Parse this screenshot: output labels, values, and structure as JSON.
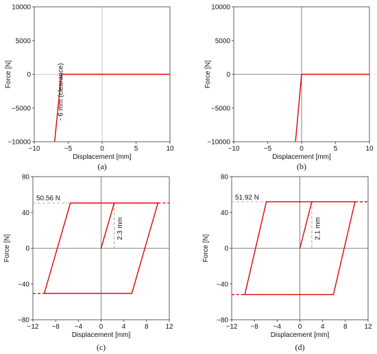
{
  "chart_data": [
    {
      "type": "line",
      "panel_label": "(a)",
      "xlabel": "Displacement [mm]",
      "ylabel": "Force [N]",
      "xlim": [
        -10,
        10
      ],
      "ylim": [
        -10000,
        10000
      ],
      "xticks": [
        -10,
        -5,
        0,
        5,
        10
      ],
      "yticks": [
        -10000,
        -5000,
        0,
        5000,
        10000
      ],
      "xtick_labels": [
        "−10",
        "−5",
        "0",
        "5",
        "10"
      ],
      "ytick_labels": [
        "−10000",
        "−5000",
        "0",
        "5000",
        "10000"
      ],
      "grid": false,
      "zero_lines": true,
      "zero_line_color": "#b8b8b8",
      "series": [
        {
          "color": "#e00000",
          "x": [
            -7,
            -6,
            10
          ],
          "y": [
            -10000,
            0,
            0
          ]
        }
      ],
      "annotations": [
        {
          "text": "- 6 mm (clearance)",
          "x": -5.8,
          "y": -2600,
          "rotate": -90
        }
      ],
      "dashed_lines": []
    },
    {
      "type": "line",
      "panel_label": "(b)",
      "xlabel": "Displacement [mm]",
      "ylabel": "Force [N]",
      "xlim": [
        -10,
        10
      ],
      "ylim": [
        -10000,
        10000
      ],
      "xticks": [
        -10,
        -5,
        0,
        5,
        10
      ],
      "yticks": [
        -10000,
        -5000,
        0,
        5000,
        10000
      ],
      "xtick_labels": [
        "−10",
        "−5",
        "0",
        "5",
        "10"
      ],
      "ytick_labels": [
        "−10000",
        "−5000",
        "0",
        "5000",
        "10000"
      ],
      "grid": false,
      "zero_lines": true,
      "zero_line_color": "#606060",
      "series": [
        {
          "color": "#e00000",
          "x": [
            -0.9,
            0,
            10
          ],
          "y": [
            -10000,
            0,
            0
          ]
        }
      ],
      "annotations": [],
      "dashed_lines": []
    },
    {
      "type": "line",
      "panel_label": "(c)",
      "xlabel": "Displacement [mm]",
      "ylabel": "Force [N]",
      "xlim": [
        -12,
        12
      ],
      "ylim": [
        -80,
        80
      ],
      "xticks": [
        -12,
        -8,
        -4,
        0,
        4,
        8,
        12
      ],
      "yticks": [
        -80,
        -40,
        0,
        40,
        80
      ],
      "xtick_labels": [
        "−12",
        "−8",
        "−4",
        "0",
        "4",
        "8",
        "12"
      ],
      "ytick_labels": [
        "−80",
        "−40",
        "0",
        "40",
        "80"
      ],
      "grid": false,
      "zero_lines": true,
      "zero_line_color": "#606060",
      "series": [
        {
          "color": "#e00000",
          "x": [
            0,
            2.3,
            10,
            5.4,
            -10,
            -5.4,
            10
          ],
          "y": [
            0,
            50.56,
            50.56,
            -50.56,
            -50.56,
            50.56,
            50.56
          ]
        }
      ],
      "annotations": [
        {
          "text": "50.56 N",
          "x": -11.4,
          "y": 53.5,
          "rotate": 0
        },
        {
          "text": "2.3 mm",
          "x": 3.7,
          "y": 22,
          "rotate": -90
        }
      ],
      "dashed_lines": [
        {
          "x": [
            -12,
            12
          ],
          "y": [
            50.56,
            50.56
          ],
          "color": "#aaaaaa"
        },
        {
          "x": [
            2.3,
            2.3
          ],
          "y": [
            50.56,
            0
          ],
          "color": "#888888"
        },
        {
          "x": [
            10,
            12
          ],
          "y": [
            50.56,
            50.56
          ],
          "color": "#e00000"
        },
        {
          "x": [
            -12,
            -10
          ],
          "y": [
            -50.56,
            -50.56
          ],
          "color": "#e00000"
        }
      ]
    },
    {
      "type": "line",
      "panel_label": "(d)",
      "xlabel": "Displacement [mm]",
      "ylabel": "Force [N]",
      "xlim": [
        -12,
        12
      ],
      "ylim": [
        -80,
        80
      ],
      "xticks": [
        -12,
        -8,
        -4,
        0,
        4,
        8,
        12
      ],
      "yticks": [
        -80,
        -40,
        0,
        40,
        80
      ],
      "xtick_labels": [
        "−12",
        "−8",
        "−4",
        "0",
        "4",
        "8",
        "12"
      ],
      "ytick_labels": [
        "−80",
        "−40",
        "0",
        "40",
        "80"
      ],
      "grid": false,
      "zero_lines": true,
      "zero_line_color": "#606060",
      "series": [
        {
          "color": "#e00000",
          "x": [
            0,
            2.1,
            9.7,
            5.9,
            -9.7,
            -5.9,
            9.7
          ],
          "y": [
            0,
            51.92,
            51.92,
            -51.92,
            -51.92,
            51.92,
            51.92
          ]
        }
      ],
      "annotations": [
        {
          "text": "51.92 N",
          "x": -11.4,
          "y": 54.5,
          "rotate": 0
        },
        {
          "text": "2.1 mm",
          "x": 3.5,
          "y": 22,
          "rotate": -90
        }
      ],
      "dashed_lines": [
        {
          "x": [
            -12,
            12
          ],
          "y": [
            51.92,
            51.92
          ],
          "color": "#aaaaaa"
        },
        {
          "x": [
            2.1,
            2.1
          ],
          "y": [
            51.92,
            0
          ],
          "color": "#888888"
        },
        {
          "x": [
            9.7,
            12
          ],
          "y": [
            51.92,
            51.92
          ],
          "color": "#e00000"
        },
        {
          "x": [
            -12,
            -9.7
          ],
          "y": [
            -51.92,
            -51.92
          ],
          "color": "#e00000"
        }
      ]
    }
  ]
}
